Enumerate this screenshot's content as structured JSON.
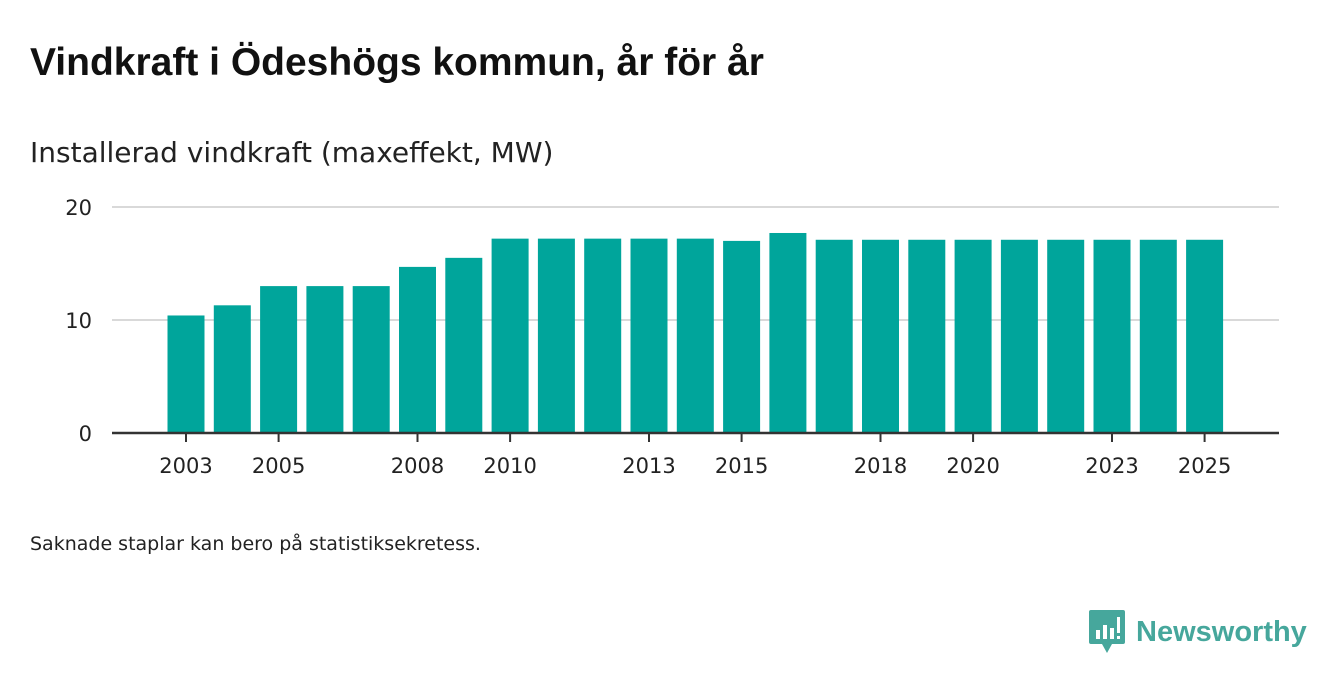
{
  "title": "Vindkraft i Ödeshögs kommun, år för år",
  "footnote": "Saknade staplar kan bero på statistiksekretess.",
  "brand": {
    "name": "Newsworthy",
    "logo_icon": "newsworthy-bar-chart-speech-bubble-icon",
    "color": "#46a79c"
  },
  "colors": {
    "bar": "#00a59b",
    "grid": "#d9d9d9",
    "axis": "#333333",
    "text": "#222222"
  },
  "chart_data": {
    "type": "bar",
    "title": "Vindkraft i Ödeshögs kommun, år för år",
    "subtitle": "Installerad vindkraft (maxeffekt, MW)",
    "xlabel": "",
    "ylabel": "Installerad vindkraft (maxeffekt, MW)",
    "categories": [
      2003,
      2004,
      2005,
      2006,
      2007,
      2008,
      2009,
      2010,
      2011,
      2012,
      2013,
      2014,
      2015,
      2016,
      2017,
      2018,
      2019,
      2020,
      2021,
      2022,
      2023,
      2024,
      2025
    ],
    "values": [
      10.4,
      11.3,
      13.0,
      13.0,
      13.0,
      14.7,
      15.5,
      17.2,
      17.2,
      17.2,
      17.2,
      17.2,
      17.0,
      17.7,
      17.1,
      17.1,
      17.1,
      17.1,
      17.1,
      17.1,
      17.1,
      17.1,
      17.1
    ],
    "x_tick_labels": [
      2003,
      2005,
      2008,
      2010,
      2013,
      2015,
      2018,
      2020,
      2023,
      2025
    ],
    "y_ticks": [
      0,
      10,
      20
    ],
    "ylim": [
      0,
      20
    ],
    "grid": true,
    "legend": "none"
  }
}
